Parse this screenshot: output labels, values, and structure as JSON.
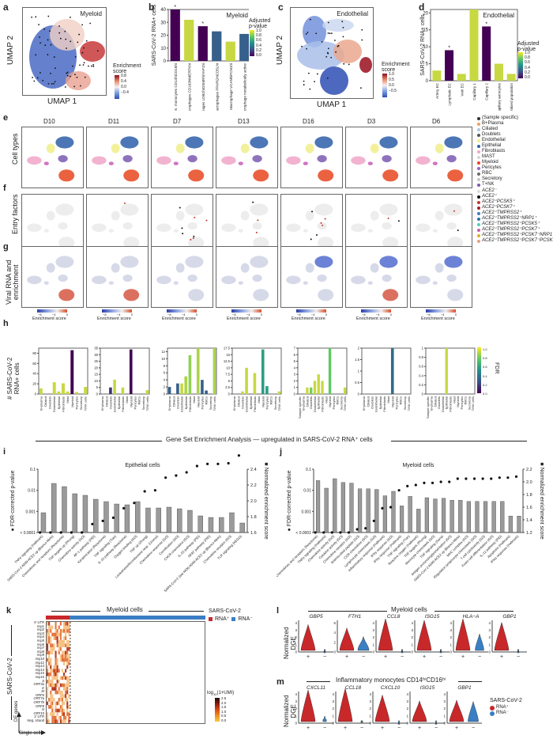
{
  "panel_labels": {
    "a": "a",
    "b": "b",
    "c": "c",
    "d": "d",
    "e": "e",
    "f": "f",
    "g": "g",
    "h": "h",
    "i": "i",
    "j": "j",
    "k": "k",
    "l": "l",
    "m": "m"
  },
  "colors": {
    "viridis_dark": "#3b0f52",
    "viridis_yellow": "#e1dc3a",
    "viridis_teal": "#2f6e8a",
    "viridis_green": "#2a9a80",
    "rna_pos": "#c8282a",
    "rna_neg": "#3a7fc4",
    "bar_grey": "#9a9a9a"
  },
  "panel_a": {
    "title": "Myeloid",
    "xlabel": "UMAP 1",
    "ylabel": "UMAP 2",
    "legend_title": "Enrichment score",
    "legend_ticks": [
      "0.8",
      "0.4",
      "0.0",
      "−0.4"
    ]
  },
  "panel_c": {
    "title": "Endothelial",
    "xlabel": "UMAP 1",
    "ylabel": "UMAP 2",
    "legend_title": "Enrichment score",
    "legend_ticks": [
      "1.0",
      "0.5",
      "0.0",
      "−0.5"
    ]
  },
  "panel_e": {
    "row_label": "Cell types",
    "donors": [
      "D10",
      "D11",
      "D7",
      "D13",
      "D16",
      "D3",
      "D6"
    ],
    "legend": [
      {
        "label": "(Sample specific)",
        "color": "#333333"
      },
      {
        "label": "B+Plasma",
        "color": "#e8a06a"
      },
      {
        "label": "Ciliated",
        "color": "#a9c6e8"
      },
      {
        "label": "Doublets",
        "color": "#555555"
      },
      {
        "label": "Endothelial",
        "color": "#f0ee88"
      },
      {
        "label": "Epithelial",
        "color": "#2d5ea8"
      },
      {
        "label": "Fibroblasts",
        "color": "#f0a6c8"
      },
      {
        "label": "MAST",
        "color": "#d6d6d6"
      },
      {
        "label": "Myeloid",
        "color": "#e8461e"
      },
      {
        "label": "Pericytes",
        "color": "#9a62c4"
      },
      {
        "label": "RBC",
        "color": "#6a6a6a"
      },
      {
        "label": "Secretory",
        "color": "#c6c6c6"
      },
      {
        "label": "T+NK",
        "color": "#7a5ab0"
      }
    ]
  },
  "panel_f": {
    "row_label": "Entry factors",
    "legend": [
      {
        "label": "ACE2⁻",
        "color": "#dddddd"
      },
      {
        "label": "ACE2⁺",
        "color": "#111111"
      },
      {
        "label": "ACE2⁺PCSK5⁺",
        "color": "#c0392b"
      },
      {
        "label": "ACE2⁺PCSK7⁺",
        "color": "#a01c2a"
      },
      {
        "label": "ACE2⁺TMPRSS2⁺",
        "color": "#3a7fc4"
      },
      {
        "label": "ACE2⁺TMPRSS2⁺NRP1⁺",
        "color": "#2d6fa8"
      },
      {
        "label": "ACE2⁺TMPRSS2⁺PCSK5⁺",
        "color": "#4ccfb8"
      },
      {
        "label": "ACE2⁺TMPRSS2⁺PCSK7⁺",
        "color": "#c85ab8"
      },
      {
        "label": "ACE2⁺TMPRSS2⁺PCSK7⁺NRP1⁺",
        "color": "#e0b21e"
      },
      {
        "label": "ACE2⁺TMPRSS2⁺PCSK7⁺PCSK5⁺",
        "color": "#e8a080"
      }
    ]
  },
  "panel_g": {
    "row_label_1": "Viral RNA and",
    "row_label_2": "enrichment",
    "cbar_label": "Enrichment score",
    "cbar_ticks": [
      "−8",
      "−4",
      "0"
    ]
  },
  "panel_h": {
    "ylabel_1": "# SARS-CoV-2",
    "ylabel_2": "RNA+ cells",
    "fdr_label": "FDR",
    "fdr_ticks": [
      "1.0",
      "0.8",
      "0.6",
      "0.4",
      "0.2",
      "0.0"
    ]
  },
  "gsea_header": "Gene Set Enrichment Analysis — upregulated in SARS-CoV-2 RNA⁺ cells",
  "panel_k": {
    "title": "Myeloid cells",
    "legend_title": "SARS-CoV-2",
    "legend_pos": "RNA⁺",
    "legend_neg": "RNA⁻",
    "ylabel": "SARS-CoV-2",
    "axis_y": "DE genes",
    "axis_x": "Single cells",
    "genes": [
      "5′ UTR",
      "nsp1",
      "nsp2",
      "nsp3",
      "nsp4",
      "nsp5",
      "nsp6",
      "nsp7",
      "nsp8",
      "nsp9",
      "nsp10",
      "nsp12",
      "nsp13",
      "nsp14",
      "nsp15",
      "nsp16",
      "S",
      "ORF3a",
      "E",
      "M",
      "ORF6",
      "ORF7a",
      "ORF7b",
      "ORF8",
      "N",
      "ORF10",
      "3′ UTR",
      "Neg. strand"
    ],
    "cbar_title": "log10(1+UMI)",
    "cbar_ticks": [
      "2.5",
      "2.0",
      "1.5",
      "1.0",
      "0.5",
      "0.0"
    ]
  },
  "panel_l_title": "Myeloid cells",
  "panel_m_title": "Inflammatory monocytes CD14ʰⁱCD16ʰⁱ",
  "violin_ylabel_1": "Normalized",
  "violin_ylabel_2": "DGE",
  "violin_legend": {
    "title": "SARS-CoV-2",
    "pos": "RNA⁺",
    "neg": "RNA⁻"
  },
  "chart_data": [
    {
      "id": "b",
      "type": "bar",
      "title": "Myeloid",
      "ylabel": "SARS-CoV-2 RNA+ cells",
      "ylim": [
        0,
        40
      ],
      "yticks": [
        0,
        10,
        20,
        30,
        40
      ],
      "categories": [
        "Inflamm. monocytes CD14hiCD16hi",
        "Macrophages CD163hiMERTKhi",
        "Macrophages LDB2hiOSMRhiYAP1hi",
        "Macrophages PPARGhiCD5Lhi",
        "Macrophage VCANhiFCN1hi",
        "Macrophage metabolically active"
      ],
      "values": [
        40,
        32,
        27,
        23,
        15,
        21
      ],
      "adj_p": [
        0.0,
        0.95,
        0.0,
        0.3,
        0.95,
        0.3
      ],
      "significant": [
        true,
        false,
        true,
        false,
        false,
        false
      ],
      "colorbar": {
        "title": "Adjusted p-value",
        "ticks": [
          "1.0",
          "0.8",
          "0.6",
          "0.4",
          "0.2",
          "0.0"
        ]
      }
    },
    {
      "id": "d",
      "type": "bar",
      "title": "Endothelial",
      "ylabel": "SARS-CoV-2 RNA+ cells",
      "ylim": [
        0,
        21
      ],
      "yticks": [
        0,
        5,
        10,
        15,
        20
      ],
      "categories": [
        "Artery EC",
        "Lymphatic EC",
        "Vein EC",
        "Capillary 1",
        "Capillary 2",
        "Capillary aerocytes",
        "Mixed population"
      ],
      "values": [
        3,
        9,
        2,
        21,
        16,
        5,
        2
      ],
      "adj_p": [
        0.95,
        0.0,
        0.95,
        0.95,
        0.0,
        0.95,
        0.95
      ],
      "significant": [
        false,
        true,
        false,
        false,
        true,
        false,
        false
      ],
      "colorbar": {
        "title": "Adjusted p-value",
        "ticks": [
          "1.0",
          "0.8",
          "0.6",
          "0.4",
          "0.2",
          "0.0"
        ]
      }
    },
    {
      "id": "h1",
      "type": "bar",
      "donor": "D10",
      "ylim": [
        0,
        90
      ],
      "yticks": [
        0,
        20,
        40,
        60,
        80
      ],
      "categories": [
        "B+plasma",
        "Ciliated",
        "Doublets",
        "Endothelial",
        "Epithelial",
        "Fibroblasts",
        "Mast",
        "Myeloid",
        "Pericytes",
        "Secretory",
        "T/NK cells"
      ],
      "values": [
        11,
        0,
        0,
        23,
        5,
        21,
        5,
        86,
        4,
        0,
        14
      ],
      "fdr": [
        0.95,
        1,
        1,
        0.95,
        0.95,
        0.95,
        0.95,
        0.0,
        0.95,
        1,
        0.95
      ]
    },
    {
      "id": "h2",
      "type": "bar",
      "donor": "D11",
      "ylim": [
        0,
        35
      ],
      "yticks": [
        0,
        5,
        10,
        15,
        20,
        25,
        30,
        35
      ],
      "categories": [
        "B+plasma",
        "Ciliated",
        "Doublets",
        "Endothelial",
        "Epithelial",
        "Fibroblasts",
        "Mast",
        "Myeloid",
        "Pericytes",
        "RBCs",
        "Secretory",
        "T/NK cells"
      ],
      "values": [
        0,
        0,
        5,
        11,
        0,
        5,
        0,
        34,
        0,
        0,
        0,
        3
      ],
      "fdr": [
        1,
        1,
        0.15,
        0.95,
        1,
        0.95,
        1,
        0.0,
        1,
        1,
        1,
        0.95
      ]
    },
    {
      "id": "h3",
      "type": "bar",
      "donor": "D7",
      "ylim": [
        0,
        13
      ],
      "yticks": [
        0,
        2,
        4,
        6,
        8,
        10,
        12
      ],
      "categories": [
        "B+plasma",
        "Ciliated",
        "Doublets",
        "Endothelial",
        "Epithelial",
        "Fibroblasts",
        "Mast",
        "Myeloid",
        "Pericytes",
        "RBCs",
        "Secretory",
        "T/NK cells"
      ],
      "values": [
        2,
        0,
        3,
        3,
        5,
        11,
        0,
        13,
        4,
        1,
        0,
        13
      ],
      "fdr": [
        0.3,
        1,
        0.3,
        0.95,
        0.9,
        0.85,
        1,
        0.9,
        0.3,
        0.3,
        1,
        0.9
      ]
    },
    {
      "id": "h4",
      "type": "bar",
      "donor": "D13",
      "ylim": [
        0,
        17.5
      ],
      "yticks": [
        0,
        2.5,
        5,
        7.5,
        10,
        12.5,
        15,
        17.5
      ],
      "categories": [
        "B+plasma",
        "Ciliated",
        "Doublets",
        "Endothelial",
        "Epithelial",
        "Fibroblasts",
        "Mast",
        "Myeloid",
        "Pericytes",
        "RBCs",
        "Secretory",
        "T/NK cells"
      ],
      "values": [
        0,
        0,
        1,
        10,
        0,
        8,
        0,
        17,
        3,
        0,
        0,
        1
      ],
      "fdr": [
        1,
        1,
        0.95,
        0.95,
        1,
        0.95,
        1,
        0.55,
        0.55,
        1,
        1,
        0.95
      ]
    },
    {
      "id": "h5",
      "type": "bar",
      "donor": "D16",
      "ylim": [
        0,
        7
      ],
      "yticks": [
        0,
        1,
        2,
        3,
        4,
        5,
        6,
        7
      ],
      "categories": [
        "Sample specific",
        "B+plasma",
        "Ciliated",
        "Doublets",
        "Endothelial",
        "Epithelial",
        "Fibroblasts",
        "Mast",
        "Myeloid",
        "Pericytes",
        "RBCs",
        "Secretory",
        "T/NK cells"
      ],
      "values": [
        0,
        0,
        1,
        1,
        2,
        3,
        2,
        0,
        7,
        0,
        0,
        0,
        1
      ],
      "fdr": [
        1,
        1,
        0.95,
        0.8,
        0.95,
        0.95,
        0.95,
        1,
        0.75,
        1,
        1,
        1,
        0.95
      ]
    },
    {
      "id": "h6",
      "type": "bar",
      "donor": "D3",
      "ylim": [
        0,
        2
      ],
      "yticks": [
        0,
        0.5,
        1.0,
        1.5,
        2.0
      ],
      "categories": [
        "B+plasma",
        "Ciliated",
        "Doublets",
        "Endothelial",
        "Epithelial",
        "Fibroblasts",
        "Mast",
        "Myeloid",
        "Pericytes",
        "RBCs",
        "Secretory",
        "T/NK cells"
      ],
      "values": [
        0,
        0,
        0,
        0,
        0,
        0,
        0,
        2,
        0,
        0,
        0,
        0
      ],
      "fdr": [
        1,
        1,
        1,
        1,
        1,
        1,
        1,
        0.35,
        1,
        1,
        1,
        1
      ]
    },
    {
      "id": "h7",
      "type": "bar",
      "donor": "D6",
      "ylim": [
        0,
        1
      ],
      "yticks": [
        0,
        0.2,
        0.4,
        0.6,
        0.8,
        1.0
      ],
      "categories": [
        "Sample specific",
        "B+plasma",
        "Ciliated",
        "Doublets",
        "Endothelial",
        "Epithelial",
        "Fibroblasts",
        "Mast",
        "Myeloid",
        "Pericytes",
        "RBCs",
        "Secretory",
        "T/NK cells"
      ],
      "values": [
        0,
        0,
        0,
        0,
        0,
        1,
        0,
        0,
        0,
        0,
        0,
        0,
        0
      ],
      "fdr": [
        1,
        1,
        1,
        1,
        1,
        0.95,
        1,
        1,
        1,
        1,
        1,
        1,
        1
      ]
    },
    {
      "id": "i",
      "type": "bar+scatter",
      "title": "Epithelial cells",
      "ylabel_left": "FDR-corrected p-value",
      "ylabel_right": "Normalized enrichment score",
      "yticks_left": [
        "< 0.0001",
        "0.001",
        "0.01",
        "0.1"
      ],
      "ylim_right": [
        1.6,
        2.4
      ],
      "yticks_right": [
        "1.6",
        "1.8",
        "2.0",
        "2.2",
        "2.4"
      ],
      "categories": [
        "TNFα signaling (Hallmark)",
        "SARS-CoV-2 A549-ACE2 up (Blanco-Melo)",
        "Chemokines and receptors (Reactome)",
        "TNF targets up (Phong)",
        "Chemokine activity (GO)",
        "AP-1 pathway (PID)",
        "Keratinization (Reactome)",
        "TNF signaling (Tian)",
        "IL-10 pathway (Reactome)",
        "Oxygen binding (GO)",
        "TNF up (Zhang)",
        "Leukotriene/thromboxane resp. (Uzonyi)",
        "Chemokine response (GO)",
        "Cornification (GO)",
        "CXCR chemokine (GO)",
        "IL-23 pathway (PID)",
        "NFAT pathway (PID)",
        "SARS-CoV-2 (low MOI) A549-ACE2 up (Blanco-Melo)",
        "Chemokine receptor (GO)",
        "TLR signaling (KEGG)"
      ],
      "nes": [
        1.85,
        2.22,
        2.18,
        2.09,
        2.07,
        2.02,
        1.99,
        1.96,
        1.95,
        1.99,
        1.91,
        1.91,
        1.92,
        1.9,
        1.88,
        1.81,
        1.79,
        1.79,
        1.85,
        1.72
      ],
      "log10_fdr": [
        -4,
        -4,
        -4,
        -4,
        -4,
        -3.6,
        -3.45,
        -3.3,
        -2.85,
        -2.6,
        -2.05,
        -2.0,
        -1.4,
        -1.3,
        -1.15,
        -0.85,
        -0.75,
        -0.75,
        -0.72,
        -0.35
      ]
    },
    {
      "id": "j",
      "type": "bar+scatter",
      "title": "Myeloid cells",
      "ylabel_left": "FDR-corrected p-value",
      "ylabel_right": "Normalized enrichment score",
      "yticks_left": [
        "< 0.0001",
        "0.001",
        "0.01",
        "0.1"
      ],
      "ylim_right": [
        1.2,
        2.2
      ],
      "yticks_right": [
        "1.2",
        "1.4",
        "1.6",
        "1.8",
        "2.0",
        "2.2"
      ],
      "categories": [
        "Chemokines and receptors (Reactome)",
        "TNFα signaling (Hallmark)",
        "Chemokine activity (GO)",
        "Cytokine activity (GO)",
        "Chemokine receptor (GO)",
        "Antimicrobial peptide (GO)",
        "CCR chemokine (GO)",
        "Lymphocyte chemotaxis (GO)",
        "Inflammatory response (Hallmark)",
        "IFNγ response (GO)",
        "IFNγ response (Hallmark)",
        "TNF signaling (Tian)",
        "Reactive oxygen (Hallmark)",
        "TNF targets (Phong)",
        "Monocyte chemotaxis (GO)",
        "TNF signaling (Sana)",
        "Antigen processing/presentation (GO)",
        "SARS-CoV-2 A549-ACE2 up (Blanco-Melo)",
        "MHC complex (GO)",
        "Regulation lymphocyte chemotaxis (GO)",
        "T cell cytotoxicity (GO)",
        "Foam cell differentiation (GO)",
        "IL-12 pathway (PID)",
        "Apoptosis (Hallmark)",
        "IFNα response (Hallmark)"
      ],
      "nes": [
        2.02,
        1.9,
        2.05,
        1.99,
        1.98,
        1.89,
        1.89,
        1.88,
        1.78,
        1.85,
        1.62,
        1.77,
        1.57,
        1.75,
        1.73,
        1.74,
        1.71,
        1.71,
        1.69,
        1.69,
        1.69,
        1.69,
        1.69,
        1.46,
        1.46
      ],
      "log10_fdr": [
        -4,
        -4,
        -4,
        -4,
        -4,
        -3.85,
        -3.8,
        -3.45,
        -2.85,
        -2.8,
        -2.0,
        -1.8,
        -1.75,
        -1.65,
        -1.65,
        -1.6,
        -1.6,
        -1.45,
        -1.45,
        -1.45,
        -1.45,
        -1.45,
        -1.4,
        -1.4,
        -1.35
      ]
    },
    {
      "id": "l",
      "type": "violin",
      "title": "Myeloid cells",
      "genes": [
        "GBP5",
        "FTH1",
        "CCL8",
        "ISG15",
        "HLA−A",
        "GBP1"
      ],
      "ymax": [
        4,
        6,
        4,
        4,
        4,
        4
      ],
      "pos_max": [
        3.8,
        5,
        4.6,
        4.4,
        4.6,
        4.1
      ],
      "neg_max": [
        0.1,
        3.2,
        0.1,
        0.1,
        2.5,
        0.1
      ],
      "groups": [
        "+",
        "−"
      ]
    },
    {
      "id": "m",
      "type": "violin",
      "title": "Inflammatory monocytes CD14hiCD16hi",
      "genes": [
        "CXCL11",
        "CCL18",
        "CXCL10",
        "ISG15",
        "GBP1"
      ],
      "ymax": [
        4,
        4,
        4,
        4,
        4
      ],
      "pos_max": [
        4.6,
        4.8,
        3.9,
        3.1,
        3.2
      ],
      "neg_max": [
        1.0,
        0.3,
        0.05,
        0.05,
        3.0
      ],
      "groups": [
        "+",
        "−"
      ]
    }
  ]
}
